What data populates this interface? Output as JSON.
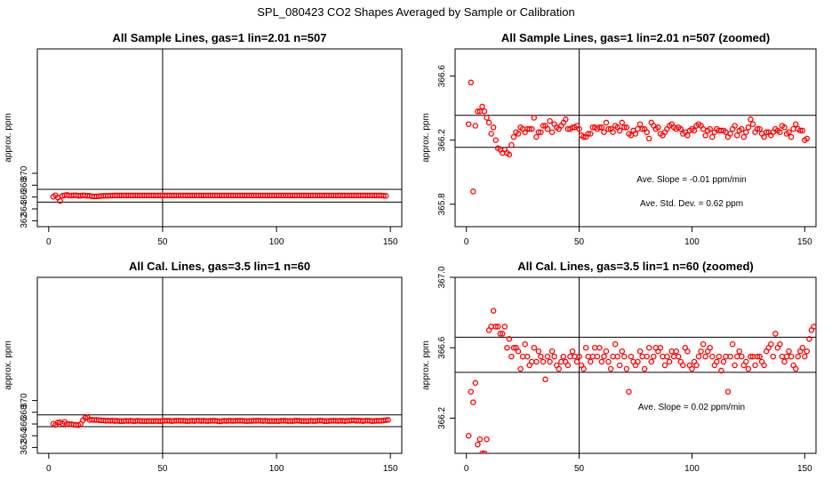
{
  "figure_title": "SPL_080423  CO2 Shapes Averaged by Sample or Calibration",
  "chart_data": [
    {
      "type": "scatter",
      "title": "All Sample Lines, gas=1 lin=2.01 n=507",
      "ylabel": "approx. ppm",
      "xlim": [
        -5,
        155
      ],
      "ylim": [
        361,
        391
      ],
      "xticks": [
        0,
        50,
        100,
        150
      ],
      "yticks": [
        362,
        364,
        366,
        368,
        370
      ],
      "ytick_labels": [
        "362",
        "364",
        "366",
        "368",
        "370"
      ],
      "vlines": [
        50
      ],
      "hlines": [
        365.15,
        367.3
      ],
      "marker_color": "#ff0000",
      "series": [
        {
          "x0": 2,
          "values": [
            366.05,
            366.3,
            365.9,
            365.35,
            366.2,
            366.3,
            366.35,
            366.25,
            366.25,
            366.3,
            366.3,
            366.2,
            366.2,
            366.3,
            366.25,
            366.2,
            366.2,
            366.15,
            366.1,
            366.12,
            366.14,
            366.18,
            366.2,
            366.22,
            366.22,
            366.24,
            366.25,
            366.26,
            366.26,
            366.26,
            366.27,
            366.27,
            366.27,
            366.27,
            366.27,
            366.27,
            366.26,
            366.27,
            366.27,
            366.27,
            366.27,
            366.27,
            366.27,
            366.27,
            366.27,
            366.27,
            366.27,
            366.27,
            366.27,
            366.27,
            366.27,
            366.27,
            366.27,
            366.27,
            366.27,
            366.27,
            366.27,
            366.27,
            366.27,
            366.27,
            366.27,
            366.27,
            366.27,
            366.27,
            366.27,
            366.27,
            366.27,
            366.27,
            366.27,
            366.27,
            366.27,
            366.27,
            366.27,
            366.27,
            366.27,
            366.27,
            366.27,
            366.27,
            366.27,
            366.27,
            366.27,
            366.27,
            366.27,
            366.27,
            366.27,
            366.27,
            366.27,
            366.27,
            366.27,
            366.27,
            366.27,
            366.27,
            366.27,
            366.27,
            366.27,
            366.27,
            366.27,
            366.27,
            366.27,
            366.27,
            366.27,
            366.27,
            366.27,
            366.27,
            366.27,
            366.27,
            366.27,
            366.27,
            366.27,
            366.27,
            366.27,
            366.27,
            366.27,
            366.27,
            366.27,
            366.27,
            366.27,
            366.27,
            366.27,
            366.27,
            366.27,
            366.27,
            366.27,
            366.27,
            366.27,
            366.27,
            366.27,
            366.27,
            366.27,
            366.27,
            366.27,
            366.27,
            366.27,
            366.27,
            366.27,
            366.27,
            366.27,
            366.27,
            366.27,
            366.27,
            366.27,
            366.27,
            366.27,
            366.27,
            366.27,
            366.22,
            366.2
          ]
        }
      ]
    },
    {
      "type": "scatter",
      "title": "All Sample Lines, gas=1 lin=2.01 n=507 (zoomed)",
      "ylabel": "approx. ppm",
      "xlim": [
        -5,
        155
      ],
      "ylim": [
        365.66,
        366.77
      ],
      "xticks": [
        0,
        50,
        100,
        150
      ],
      "yticks": [
        365.8,
        366.2,
        366.6
      ],
      "ytick_labels": [
        "365.8",
        "366.2",
        "366.6"
      ],
      "vlines": [
        50
      ],
      "hlines": [
        366.155,
        366.355
      ],
      "marker_color": "#ff0000",
      "annotations": [
        "Ave. Slope = -0.01  ppm/min",
        "Ave. Std. Dev. = 0.62  ppm"
      ],
      "series": [
        {
          "x0": 1,
          "values": [
            366.3,
            366.56,
            365.88,
            366.29,
            366.38,
            366.38,
            366.41,
            366.38,
            366.34,
            366.31,
            366.24,
            366.28,
            366.2,
            366.15,
            366.14,
            366.12,
            366.14,
            366.12,
            366.11,
            366.17,
            366.22,
            366.25,
            366.24,
            366.28,
            366.27,
            366.25,
            366.27,
            366.27,
            366.27,
            366.34,
            366.22,
            366.25,
            366.25,
            366.29,
            366.29,
            366.27,
            366.32,
            366.25,
            366.3,
            366.28,
            366.27,
            366.29,
            366.31,
            366.33,
            366.27,
            366.27,
            366.28,
            366.28,
            366.29,
            366.27,
            366.23,
            366.22,
            366.22,
            366.24,
            366.24,
            366.28,
            366.28,
            366.27,
            366.28,
            366.28,
            366.25,
            366.31,
            366.27,
            366.27,
            366.25,
            366.29,
            366.28,
            366.26,
            366.31,
            366.28,
            366.28,
            366.24,
            366.23,
            366.26,
            366.24,
            366.27,
            366.3,
            366.27,
            366.27,
            366.25,
            366.21,
            366.31,
            366.29,
            366.27,
            366.28,
            366.24,
            366.23,
            366.25,
            366.27,
            366.29,
            366.3,
            366.28,
            366.27,
            366.28,
            366.27,
            366.24,
            366.25,
            366.23,
            366.26,
            366.27,
            366.26,
            366.29,
            366.3,
            366.29,
            366.27,
            366.23,
            366.26,
            366.27,
            366.22,
            366.25,
            366.27,
            366.26,
            366.26,
            366.26,
            366.25,
            366.22,
            366.24,
            366.27,
            366.29,
            366.23,
            366.26,
            366.27,
            366.22,
            366.25,
            366.28,
            366.33,
            366.3,
            366.25,
            366.27,
            366.27,
            366.24,
            366.22,
            366.25,
            366.25,
            366.23,
            366.25,
            366.27,
            366.26,
            366.25,
            366.29,
            366.28,
            366.24,
            366.25,
            366.22,
            366.27,
            366.3,
            366.27,
            366.26,
            366.26,
            366.2,
            366.21
          ]
        }
      ]
    },
    {
      "type": "scatter",
      "title": "All Cal. Lines, gas=3.5 lin=1 n=60",
      "ylabel": "approx. ppm",
      "xlim": [
        -5,
        155
      ],
      "ylim": [
        361,
        391
      ],
      "xticks": [
        0,
        50,
        100,
        150
      ],
      "yticks": [
        362,
        364,
        366,
        368,
        370
      ],
      "ytick_labels": [
        "362",
        "364",
        "366",
        "368",
        "370"
      ],
      "vlines": [
        50
      ],
      "hlines": [
        365.55,
        367.55
      ],
      "marker_color": "#ff0000",
      "series": [
        {
          "x0": 2,
          "values": [
            366.05,
            365.85,
            366.25,
            366.3,
            366.05,
            366.35,
            366.0,
            365.95,
            365.95,
            365.9,
            365.85,
            365.8,
            366.0,
            366.65,
            367.05,
            367.1,
            366.7,
            366.72,
            366.68,
            366.7,
            366.65,
            366.62,
            366.6,
            366.55,
            366.58,
            366.55,
            366.58,
            366.52,
            366.55,
            366.5,
            366.5,
            366.5,
            366.55,
            366.52,
            366.55,
            366.5,
            366.5,
            366.55,
            366.52,
            366.5,
            366.5,
            366.5,
            366.52,
            366.5,
            366.5,
            366.52,
            366.5,
            366.48,
            366.52,
            366.55,
            366.55,
            366.55,
            366.5,
            366.55,
            366.55,
            366.58,
            366.55,
            366.55,
            366.52,
            366.5,
            366.52,
            366.55,
            366.5,
            366.58,
            366.55,
            366.52,
            366.55,
            366.52,
            366.5,
            366.55,
            366.55,
            366.55,
            366.5,
            366.45,
            366.5,
            366.55,
            366.52,
            366.55,
            366.55,
            366.52,
            366.55,
            366.55,
            366.55,
            366.55,
            366.52,
            366.5,
            366.52,
            366.52,
            366.55,
            366.55,
            366.58,
            366.55,
            366.52,
            366.55,
            366.52,
            366.5,
            366.52,
            366.5,
            366.52,
            366.48,
            366.55,
            366.55,
            366.55,
            366.5,
            366.52,
            366.5,
            366.55,
            366.58,
            366.55,
            366.5,
            366.52,
            366.5,
            366.5,
            366.55,
            366.52,
            366.5,
            366.55,
            366.58,
            366.55,
            366.48,
            366.5,
            366.52,
            366.55,
            366.55,
            366.55,
            366.52,
            366.55,
            366.55,
            366.5,
            366.55,
            366.55,
            366.6,
            366.62,
            366.55,
            366.58,
            366.55,
            366.5,
            366.58,
            366.58,
            366.55,
            366.5,
            366.52,
            366.55,
            366.55,
            366.55,
            366.6,
            366.65,
            366.7
          ]
        }
      ]
    },
    {
      "type": "scatter",
      "title": "All Cal. Lines, gas=3.5 lin=1 n=60 (zoomed)",
      "ylabel": "approx. ppm",
      "xlim": [
        -5,
        155
      ],
      "ylim": [
        366.0,
        367.0
      ],
      "xticks": [
        0,
        50,
        100,
        150
      ],
      "yticks": [
        366.2,
        366.6,
        367.0
      ],
      "ytick_labels": [
        "366.2",
        "366.6",
        "367.0"
      ],
      "vlines": [
        50
      ],
      "hlines": [
        366.46,
        366.66
      ],
      "marker_color": "#ff0000",
      "annotations": [
        "Ave. Slope =  0.02  ppm/min"
      ],
      "series": [
        {
          "x0": 1,
          "values": [
            366.1,
            366.35,
            366.29,
            366.4,
            366.05,
            366.08,
            366.0,
            366.0,
            366.08,
            366.7,
            366.72,
            366.81,
            366.72,
            366.72,
            366.68,
            366.68,
            366.72,
            366.6,
            366.65,
            366.55,
            366.6,
            366.6,
            366.58,
            366.48,
            366.55,
            366.62,
            366.55,
            366.5,
            366.52,
            366.6,
            366.52,
            366.58,
            366.55,
            366.52,
            366.42,
            366.55,
            366.52,
            366.58,
            366.55,
            366.5,
            366.48,
            366.52,
            366.55,
            366.52,
            366.5,
            366.55,
            366.58,
            366.55,
            366.52,
            366.55,
            366.5,
            366.48,
            366.6,
            366.55,
            366.52,
            366.55,
            366.6,
            366.55,
            366.6,
            366.52,
            366.55,
            366.58,
            366.52,
            366.48,
            366.55,
            366.62,
            366.55,
            366.5,
            366.58,
            366.55,
            366.48,
            366.35,
            366.55,
            366.52,
            366.5,
            366.52,
            366.58,
            366.55,
            366.48,
            366.55,
            366.6,
            366.52,
            366.55,
            366.6,
            366.58,
            366.6,
            366.55,
            366.5,
            366.55,
            366.52,
            366.58,
            366.55,
            366.58,
            366.55,
            366.52,
            366.5,
            366.6,
            366.58,
            366.5,
            366.48,
            366.52,
            366.5,
            366.55,
            366.58,
            366.62,
            366.55,
            366.58,
            366.6,
            366.55,
            366.5,
            366.52,
            366.55,
            366.47,
            366.52,
            366.55,
            366.35,
            366.55,
            366.62,
            366.5,
            366.55,
            366.58,
            366.55,
            366.5,
            366.52,
            366.48,
            366.55,
            366.55,
            366.5,
            366.55,
            366.55,
            366.52,
            366.5,
            366.58,
            366.6,
            366.62,
            366.55,
            366.68,
            366.6,
            366.62,
            366.55,
            366.52,
            366.55,
            366.58,
            366.55,
            366.5,
            366.48,
            366.55,
            366.58,
            366.6,
            366.55,
            366.58,
            366.65,
            366.7,
            366.72
          ]
        }
      ]
    }
  ]
}
